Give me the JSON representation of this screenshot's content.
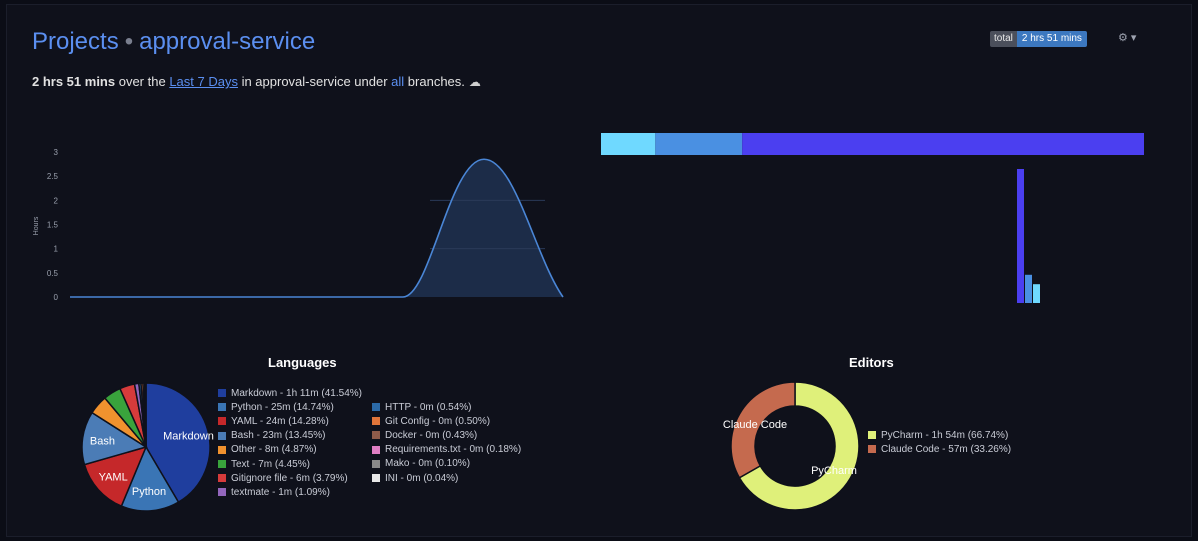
{
  "header": {
    "projects_label": "Projects",
    "separator": "•",
    "project_name": "approval-service",
    "badge_key": "total",
    "badge_value": "2 hrs 51 mins",
    "gear_glyph": "⚙ ▾"
  },
  "summary": {
    "total": "2 hrs 51 mins",
    "over_the": " over the ",
    "range": "Last 7 Days",
    "in": " in approval-service under ",
    "all": "all",
    "branches": " branches.",
    "cloud_glyph": "☁"
  },
  "chart_data": [
    {
      "type": "area",
      "name": "coding-activity",
      "ylabel": "Hours",
      "ylim": [
        0,
        3
      ],
      "yticks": [
        "0",
        "0.5",
        "1",
        "1.5",
        "2",
        "2.5",
        "3"
      ],
      "x": [
        0,
        1,
        2,
        3,
        4,
        5,
        6
      ],
      "values": [
        0,
        0,
        0,
        0,
        0,
        0,
        2.85
      ],
      "color": "#4a86d6",
      "fill": "#1c2c48"
    },
    {
      "type": "bar",
      "name": "categories-stacked",
      "orientation": "horizontal-stacked",
      "values": [
        10,
        16,
        74
      ],
      "colors": [
        "#6fd9ff",
        "#4a90e2",
        "#4b3ff0"
      ]
    },
    {
      "type": "bar",
      "name": "daily-breakdown",
      "values": [
        2.85,
        0.6,
        0.4
      ],
      "colors": [
        "#4b3ff0",
        "#4a90e2",
        "#6fd9ff"
      ]
    },
    {
      "type": "pie",
      "title": "Languages",
      "slices": [
        {
          "label": "Markdown",
          "legend": "Markdown - 1h 11m (41.54%)",
          "value": 41.54,
          "color": "#1f3e9e"
        },
        {
          "label": "Python",
          "legend": "Python - 25m (14.74%)",
          "value": 14.74,
          "color": "#3a75b5"
        },
        {
          "label": "YAML",
          "legend": "YAML - 24m (14.28%)",
          "value": 14.28,
          "color": "#c5282a"
        },
        {
          "label": "Bash",
          "legend": "Bash - 23m (13.45%)",
          "value": 13.45,
          "color": "#4b7cb6"
        },
        {
          "label": "",
          "legend": "Other - 8m (4.87%)",
          "value": 4.87,
          "color": "#f1922e"
        },
        {
          "label": "",
          "legend": "Text - 7m (4.45%)",
          "value": 4.45,
          "color": "#39a33c"
        },
        {
          "label": "",
          "legend": "Gitignore file - 6m (3.79%)",
          "value": 3.79,
          "color": "#d63b3b"
        },
        {
          "label": "",
          "legend": "textmate - 1m (1.09%)",
          "value": 1.09,
          "color": "#9366bd"
        },
        {
          "label": "",
          "legend": "HTTP - 0m (0.54%)",
          "value": 0.54,
          "color": "#2b6aa8"
        },
        {
          "label": "",
          "legend": "Git Config - 0m (0.50%)",
          "value": 0.5,
          "color": "#e0753a"
        },
        {
          "label": "",
          "legend": "Docker - 0m (0.43%)",
          "value": 0.43,
          "color": "#8e5b4a"
        },
        {
          "label": "",
          "legend": "Requirements.txt - 0m (0.18%)",
          "value": 0.18,
          "color": "#e07fc4"
        },
        {
          "label": "",
          "legend": "Mako - 0m (0.10%)",
          "value": 0.1,
          "color": "#8a8a8a"
        },
        {
          "label": "",
          "legend": "INI - 0m (0.04%)",
          "value": 0.04,
          "color": "#e8e8e8"
        }
      ]
    },
    {
      "type": "pie",
      "title": "Editors",
      "donut": true,
      "slices": [
        {
          "label": "PyCharm",
          "legend": "PyCharm - 1h 54m (66.74%)",
          "value": 66.74,
          "color": "#dff07a"
        },
        {
          "label": "Claude Code",
          "legend": "Claude Code - 57m (33.26%)",
          "value": 33.26,
          "color": "#c56a4e"
        }
      ]
    }
  ]
}
